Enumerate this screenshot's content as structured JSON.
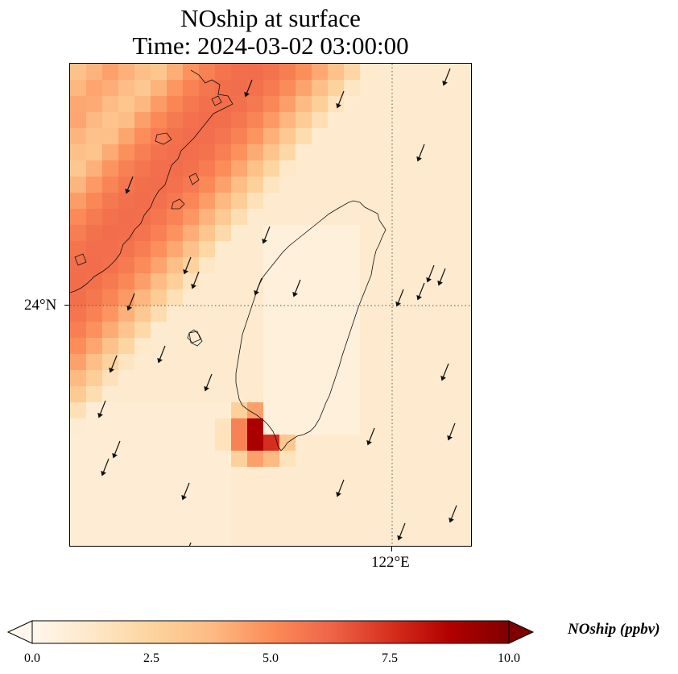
{
  "title": {
    "line1": "NOship at surface",
    "line2": "Time: 2024-03-02 03:00:00"
  },
  "axes": {
    "lat_tick_label": "24°N",
    "lon_tick_label": "122°E",
    "gridlines": "dotted",
    "lat_line": 24,
    "lon_line": 122
  },
  "chart_data": {
    "type": "heatmap",
    "variable": "NOship",
    "units": "ppbv",
    "vmin": 0.0,
    "vmax": 10.0,
    "colormap": "OrRd",
    "colorbar_extend": "both",
    "features": {
      "shipping_lane_max_ppbv": 6.0,
      "southwest_hotspot_max_ppbv": 10.0,
      "background_ppbv": 1.0
    },
    "wind_vectors": "south-southwest",
    "colorbar": {
      "label": "NOship (ppbv)",
      "ticks": [
        "0.0",
        "2.5",
        "5.0",
        "7.5",
        "10.0"
      ],
      "orientation": "horizontal",
      "placement": "bottom"
    }
  }
}
